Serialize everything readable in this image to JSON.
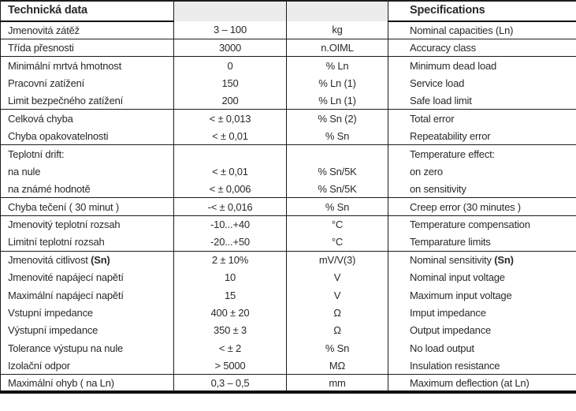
{
  "colors": {
    "border": "#1c1c1c",
    "text": "#27292b",
    "header_fill": "#ececec",
    "background": "#ffffff"
  },
  "header": {
    "czech_title": "Technická data",
    "english_title": "Specifications"
  },
  "rows": [
    {
      "cz": "Jmenovitá zátěž",
      "value": "3 – 100",
      "unit": "kg",
      "en": "Nominal capacities (Ln)",
      "sep": false
    },
    {
      "cz": "Třída přesnosti",
      "value": "3000",
      "unit": "n.OIML",
      "en": "Accuracy class",
      "sep": true
    },
    {
      "cz": "Minimální mrtvá hmotnost",
      "value": "0",
      "unit": "% Ln",
      "en": "Minimum dead load",
      "sep": true
    },
    {
      "cz": "Pracovní zatížení",
      "value": "150",
      "unit": "% Ln (1)",
      "en": "Service load",
      "sep": false
    },
    {
      "cz": "Limit bezpečného zatížení",
      "value": "200",
      "unit": "% Ln (1)",
      "en": "Safe load limit",
      "sep": false
    },
    {
      "cz": "Celková chyba",
      "value": "< ± 0,013",
      "unit": "% Sn (2)",
      "en": "Total error",
      "sep": true
    },
    {
      "cz": "Chyba opakovatelnosti",
      "value": "< ± 0,01",
      "unit": "% Sn",
      "en": "Repeatability error",
      "sep": false
    },
    {
      "cz": "Teplotní drift:",
      "value": "",
      "unit": "",
      "en": "Temperature effect:",
      "sep": true
    },
    {
      "cz": "na nule",
      "value": "< ± 0,01",
      "unit": "% Sn/5K",
      "en": "on zero",
      "sep": false
    },
    {
      "cz": "na známé hodnotě",
      "value": "< ± 0,006",
      "unit": "% Sn/5K",
      "en": "on sensitivity",
      "sep": false
    },
    {
      "cz": "Chyba tečení ( 30 minut )",
      "value": "-< ± 0,016",
      "unit": "% Sn",
      "en": "Creep error (30 minutes )",
      "sep": true
    },
    {
      "cz": "Jmenovitý teplotní rozsah",
      "value": "-10...+40",
      "unit": "°C",
      "en": "Temperature compensation",
      "sep": true
    },
    {
      "cz": "Limitní teplotní rozsah",
      "value": "-20...+50",
      "unit": "°C",
      "en": "Temparature limits",
      "sep": false
    },
    {
      "cz": "Jmenovitá citlivost **(Sn)**",
      "value": "2 ± 10%",
      "unit": "mV/V(3)",
      "en": "Nominal sensitivity **(Sn)**",
      "sep": true
    },
    {
      "cz": "Jmenovité napájecí napětí",
      "value": "10",
      "unit": "V",
      "en": "Nominal input voltage",
      "sep": false
    },
    {
      "cz": "Maximální napájecí napětí",
      "value": "15",
      "unit": "V",
      "en": "Maximum input voltage",
      "sep": false
    },
    {
      "cz": "Vstupní impedance",
      "value": "400 ± 20",
      "unit": "Ω",
      "en": "Imput impedance",
      "sep": false
    },
    {
      "cz": "Výstupní impedance",
      "value": "350 ± 3",
      "unit": "Ω",
      "en": "Output impedance",
      "sep": false
    },
    {
      "cz": "Tolerance výstupu na nule",
      "value": "< ± 2",
      "unit": "% Sn",
      "en": "No load output",
      "sep": false
    },
    {
      "cz": "Izolační odpor",
      "value": "> 5000",
      "unit": "MΩ",
      "en": "Insulation resistance",
      "sep": false
    },
    {
      "cz": "Maximální ohyb ( na Ln)",
      "value": "0,3 – 0,5",
      "unit": "mm",
      "en": "Maximum deflection (at Ln)",
      "sep": true
    }
  ]
}
